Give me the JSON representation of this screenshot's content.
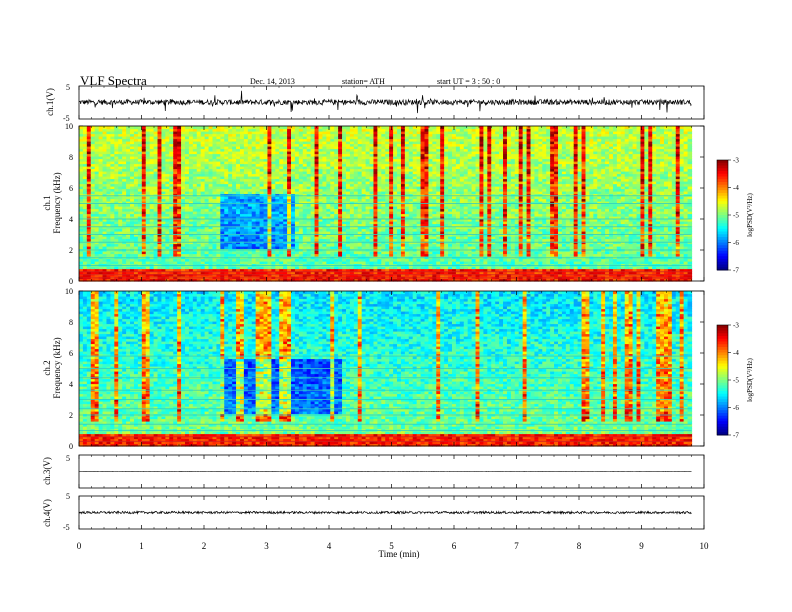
{
  "header": {
    "title": "VLF  Spectra",
    "date": "Dec. 14,  2013",
    "station": "station= ATH",
    "start": "start  UT  =   3  : 50 : 0"
  },
  "chart_data": [
    {
      "type": "line",
      "panel": "ch1",
      "ylabel": "ch.1(V)",
      "ylim": [
        -5,
        5
      ],
      "y_ticks": [
        "5",
        "-5"
      ],
      "xlim": [
        0,
        10
      ],
      "data_extent_min": 9.8,
      "baseline_v": 0.1,
      "noise_amplitude_v": 0.8,
      "color": "#000000"
    },
    {
      "type": "heatmap",
      "panel": "ch1-spectrogram",
      "ylabel": "ch.1\nFrequency  (kHz)",
      "ylim": [
        0,
        10
      ],
      "y_ticks": [
        "0",
        "2",
        "4",
        "6",
        "8",
        "10"
      ],
      "xlim": [
        0,
        10
      ],
      "data_extent_min": 9.8,
      "colorbar": {
        "label": "logPSD(V²/Hz)",
        "range": [
          -7,
          -3
        ],
        "ticks": [
          "-3",
          "-4",
          "-5",
          "-6",
          "-7"
        ]
      },
      "background_logpsd_low_khz": -5.2,
      "background_logpsd_high_khz": -4.7,
      "quiet_interval_min": [
        2.2,
        3.4
      ],
      "emission_lines_khz": [
        0.2,
        0.4,
        0.6,
        1.0,
        1.5,
        2.0,
        2.5,
        3.0,
        3.5,
        4.0,
        5.0,
        5.5
      ]
    },
    {
      "type": "heatmap",
      "panel": "ch2-spectrogram",
      "ylabel": "ch.2\nFrequency  (kHz)",
      "ylim": [
        0,
        10
      ],
      "y_ticks": [
        "0",
        "2",
        "4",
        "6",
        "8",
        "10"
      ],
      "xlim": [
        0,
        10
      ],
      "data_extent_min": 9.8,
      "colorbar": {
        "label": "logPSD(V²/Hz)",
        "range": [
          -7,
          -3
        ],
        "ticks": [
          "-3",
          "-4",
          "-5",
          "-6",
          "-7"
        ]
      },
      "background_logpsd_low_khz": -5.0,
      "background_logpsd_high_khz": -5.6,
      "quiet_interval_min": [
        2.2,
        4.2
      ],
      "emission_lines_khz": [
        0.3,
        0.6,
        1.0,
        1.4,
        2.0,
        2.4,
        3.0,
        3.6,
        4.4,
        5.0,
        5.8
      ]
    },
    {
      "type": "line",
      "panel": "ch3",
      "ylabel": "ch.3(V)",
      "ylim": [
        -5,
        5
      ],
      "y_ticks": [
        "5"
      ],
      "xlim": [
        0,
        10
      ],
      "data_extent_min": 9.8,
      "baseline_v": 0.0,
      "noise_amplitude_v": 0.05,
      "color": "#000000"
    },
    {
      "type": "line",
      "panel": "ch4",
      "ylabel": "ch.4(V)",
      "ylim": [
        -5,
        5
      ],
      "y_ticks": [
        "5",
        "-5"
      ],
      "xlim": [
        0,
        10
      ],
      "data_extent_min": 9.8,
      "baseline_v": 0.0,
      "noise_amplitude_v": 0.35,
      "color": "#000000"
    }
  ],
  "x_axis": {
    "label": "Time  (min)",
    "ticks": [
      "0",
      "1",
      "2",
      "3",
      "4",
      "5",
      "6",
      "7",
      "8",
      "9",
      "10"
    ]
  }
}
